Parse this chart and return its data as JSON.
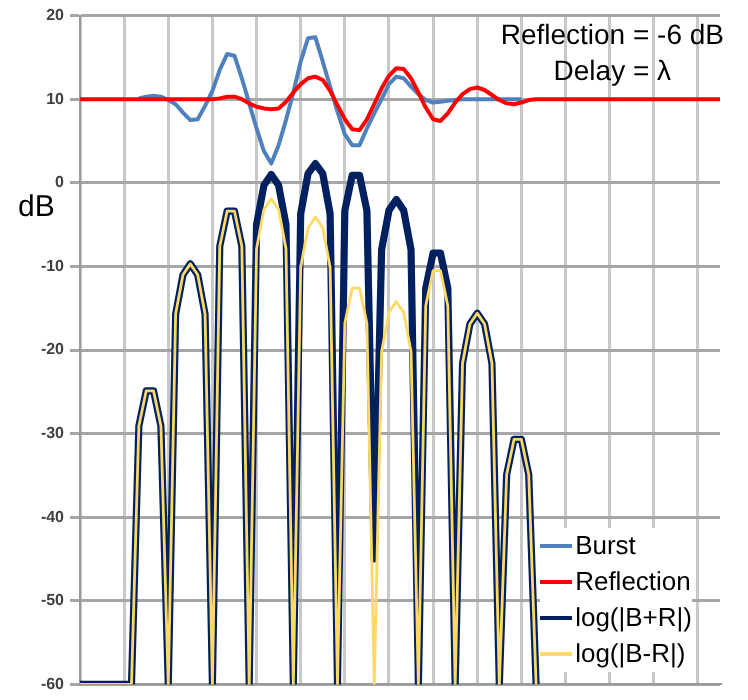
{
  "chart_data": {
    "type": "line",
    "ylabel": "dB",
    "annotations": [
      "Reflection = -6 dB",
      "Delay = λ"
    ],
    "categories": [
      null,
      null,
      null,
      null,
      null,
      null,
      null,
      null,
      null,
      null,
      null,
      null,
      null,
      null,
      null,
      null,
      null,
      null,
      null,
      null,
      null,
      null,
      null,
      null,
      null,
      null,
      null,
      null,
      null,
      null,
      null,
      null,
      null,
      null,
      null,
      null,
      null,
      null,
      null,
      null,
      null,
      null,
      null,
      null,
      null,
      null,
      null,
      null,
      null,
      null,
      null,
      null,
      null,
      null,
      null,
      null,
      null,
      null,
      null,
      null,
      null,
      null,
      null,
      null,
      null,
      null,
      null,
      null,
      null,
      null,
      null,
      null,
      null,
      null,
      null,
      null,
      null,
      null,
      null,
      null,
      null,
      null,
      null,
      null,
      null,
      null,
      null,
      null
    ],
    "ylim": [
      -60,
      20
    ],
    "yticks": [
      -60,
      -50,
      -40,
      -30,
      -20,
      -10,
      0,
      10,
      20
    ],
    "tick_labels": "y",
    "grid": true,
    "legend": "bottom right",
    "marker": "none",
    "series": [
      {
        "name": "Burst",
        "color": "#4f81bd",
        "values": [
          null,
          null,
          null,
          null,
          null,
          null,
          null,
          null,
          10.1,
          10.3,
          10.4,
          10.3,
          9.9,
          9.4,
          8.4,
          7.5,
          7.6,
          9.2,
          11,
          13.5,
          15.4,
          15.2,
          12.5,
          9.5,
          6.5,
          3.8,
          2.3,
          4.5,
          7.5,
          10.8,
          14.5,
          17.3,
          17.4,
          14.5,
          11.5,
          8.5,
          5.8,
          4.5,
          4.5,
          6.5,
          8.3,
          10.0,
          11.8,
          12.7,
          12.5,
          11.5,
          10.6,
          9.9,
          9.6,
          9.7,
          9.8,
          9.9,
          10,
          10,
          10,
          10,
          10,
          10,
          10,
          10,
          10,
          null,
          null,
          null,
          null,
          null,
          null,
          null,
          null,
          null,
          null,
          null,
          null,
          null,
          null,
          null,
          null,
          null,
          null,
          null,
          null,
          null,
          null,
          null,
          null,
          null,
          null,
          null
        ]
      },
      {
        "name": "Reflection",
        "color": "#ff0000",
        "values": [
          10,
          10,
          10,
          10,
          10,
          10,
          10,
          10,
          10,
          10,
          10,
          10,
          10,
          10,
          10,
          10,
          10,
          10,
          10,
          10.1,
          10.3,
          10.3,
          10.0,
          9.5,
          9.1,
          8.9,
          8.8,
          8.9,
          9.7,
          10.8,
          11.8,
          12.5,
          12.7,
          12.3,
          11.0,
          9.3,
          7.6,
          6.4,
          6.3,
          7.6,
          9.4,
          11.3,
          12.8,
          13.7,
          13.6,
          12.5,
          10.8,
          9.0,
          7.6,
          7.4,
          8.3,
          9.6,
          10.6,
          11.2,
          11.4,
          11.1,
          10.5,
          9.9,
          9.5,
          9.4,
          9.6,
          9.9,
          10,
          10,
          10,
          10,
          10,
          10,
          10,
          10,
          10,
          10,
          10,
          10,
          10,
          10,
          10,
          10,
          10,
          10,
          10,
          10,
          10,
          10,
          10,
          10,
          10,
          10
        ]
      },
      {
        "name": "log(|B+R|)",
        "color": "#002060",
        "values": [
          -60,
          -60,
          -60,
          -60,
          -60,
          -60,
          -60,
          -60,
          -29.1,
          -24.9,
          -24.9,
          -29.1,
          -60,
          -15.7,
          -11.0,
          -9.7,
          -11.0,
          -15.7,
          -60,
          -7.6,
          -3.4,
          -3.4,
          -7.6,
          -60,
          -5.0,
          -0.3,
          1.0,
          -0.3,
          -5.0,
          -60,
          -3.7,
          1.1,
          2.3,
          1.1,
          -3.7,
          -60,
          -3.3,
          0.9,
          0.9,
          -3.3,
          -45,
          -8.0,
          -3.3,
          -2.0,
          -3.3,
          -8.0,
          -60,
          -12.6,
          -8.4,
          -8.4,
          -12.6,
          -60,
          -21.6,
          -16.9,
          -15.6,
          -16.9,
          -21.6,
          -60,
          -34.9,
          -30.7,
          -30.7,
          -34.9,
          -60,
          null,
          null,
          null,
          null,
          null,
          null,
          null,
          null,
          null,
          null,
          null,
          null,
          null,
          null,
          null,
          null,
          null,
          null,
          null,
          null,
          null,
          null,
          null,
          null,
          null
        ]
      },
      {
        "name": "log(|B-R|)",
        "color": "#ffd966",
        "values": [
          -60,
          -60,
          -60,
          -60,
          -60,
          -60,
          -60,
          -60,
          -29.1,
          -24.9,
          -24.9,
          -29.1,
          -60,
          -15.7,
          -11.0,
          -9.7,
          -11.0,
          -15.7,
          -60,
          -7.6,
          -3.4,
          -3.4,
          -7.6,
          -60,
          -7.9,
          -3.2,
          -1.9,
          -3.2,
          -7.9,
          -60,
          -10.1,
          -5.4,
          -4.1,
          -5.4,
          -10.1,
          -60,
          -16.8,
          -12.6,
          -12.6,
          -16.8,
          -60,
          -20.2,
          -15.5,
          -14.2,
          -15.5,
          -20.2,
          -60,
          -14.7,
          -10.5,
          -10.5,
          -14.7,
          -60,
          -21.6,
          -16.9,
          -15.6,
          -16.9,
          -21.6,
          -60,
          -34.9,
          -30.7,
          -30.7,
          -34.9,
          -60,
          null,
          null,
          null,
          null,
          null,
          null,
          null,
          null,
          null,
          null,
          null,
          null,
          null,
          null,
          null,
          null,
          null,
          null,
          null,
          null,
          null,
          null,
          null,
          null,
          null
        ]
      }
    ]
  }
}
